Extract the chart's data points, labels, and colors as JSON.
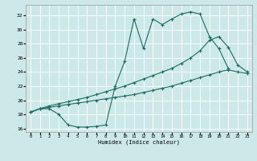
{
  "xlabel": "Humidex (Indice chaleur)",
  "bg_color": "#cce8e8",
  "grid_color": "#ffffff",
  "line_color": "#1a6b5e",
  "xlim": [
    -0.5,
    23.5
  ],
  "ylim": [
    15.5,
    33.5
  ],
  "xticks": [
    0,
    1,
    2,
    3,
    4,
    5,
    6,
    7,
    8,
    9,
    10,
    11,
    12,
    13,
    14,
    15,
    16,
    17,
    18,
    19,
    20,
    21,
    22,
    23
  ],
  "yticks": [
    16,
    18,
    20,
    22,
    24,
    26,
    28,
    30,
    32
  ],
  "s1_x": [
    0,
    1,
    2,
    3,
    4,
    5,
    6,
    7,
    8,
    9,
    10,
    11,
    12,
    13,
    14,
    15,
    16,
    17,
    18,
    19,
    20,
    21
  ],
  "s1_y": [
    18.3,
    18.8,
    18.8,
    18.0,
    16.5,
    16.2,
    16.2,
    16.3,
    16.5,
    22.0,
    25.5,
    31.5,
    27.3,
    31.5,
    30.7,
    31.5,
    32.2,
    32.5,
    32.2,
    29.0,
    27.3,
    24.5
  ],
  "s2_x": [
    0,
    1,
    2,
    3,
    4,
    5,
    6,
    7,
    8,
    9,
    10,
    11,
    12,
    13,
    14,
    15,
    16,
    17,
    18,
    19,
    20,
    21,
    22,
    23
  ],
  "s2_y": [
    18.3,
    18.8,
    19.0,
    19.2,
    19.4,
    19.6,
    19.8,
    20.0,
    20.2,
    20.4,
    20.6,
    20.8,
    21.1,
    21.4,
    21.7,
    22.0,
    22.4,
    22.8,
    23.2,
    23.6,
    24.0,
    24.3,
    24.0,
    23.8
  ],
  "s3_x": [
    0,
    1,
    2,
    3,
    4,
    5,
    6,
    7,
    8,
    9,
    10,
    11,
    12,
    13,
    14,
    15,
    16,
    17,
    18,
    19,
    20,
    21,
    22,
    23
  ],
  "s3_y": [
    18.3,
    18.8,
    19.2,
    19.5,
    19.8,
    20.1,
    20.4,
    20.8,
    21.2,
    21.6,
    22.0,
    22.5,
    23.0,
    23.5,
    24.0,
    24.5,
    25.2,
    26.0,
    27.0,
    28.5,
    29.0,
    27.5,
    25.0,
    24.0
  ]
}
